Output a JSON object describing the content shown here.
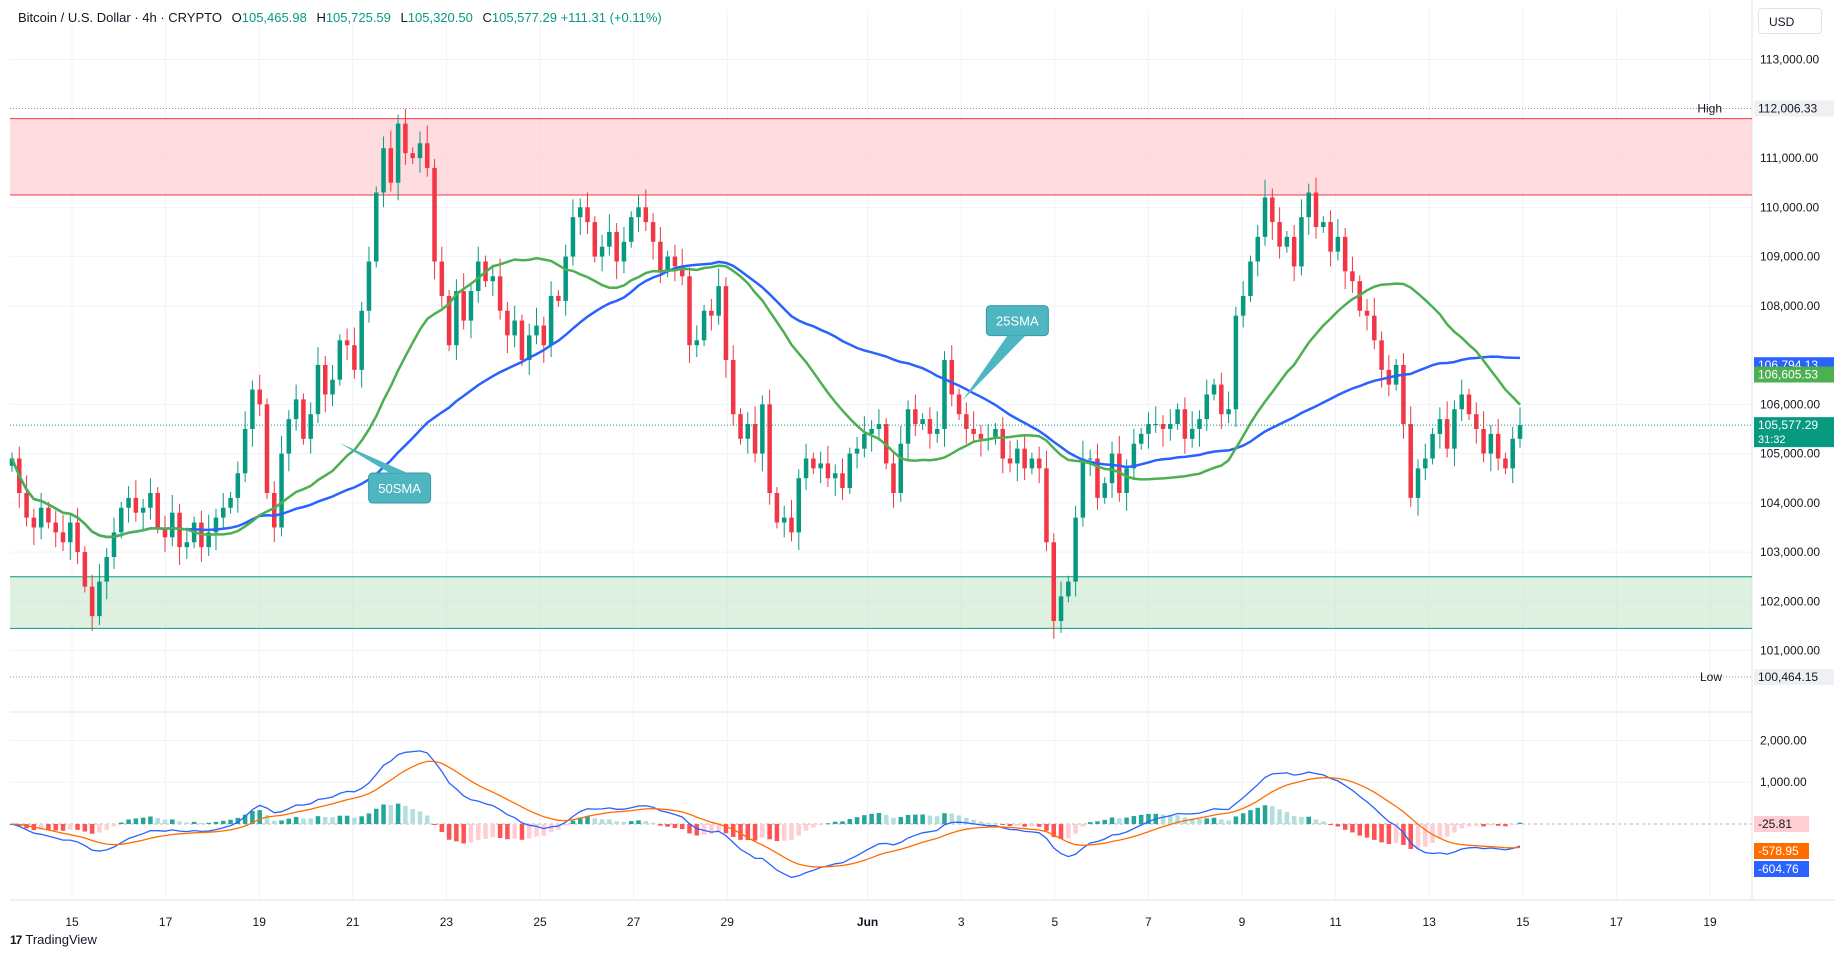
{
  "header": {
    "symbol": "Bitcoin / U.S. Dollar · 4h · CRYPTO",
    "open_label": "O",
    "open": "105,465.98",
    "high_label": "H",
    "high": "105,725.59",
    "low_label": "L",
    "low": "105,320.50",
    "close_label": "C",
    "close": "105,577.29",
    "change": "+111.31 (+0.11%)"
  },
  "currency": "USD",
  "brand": {
    "logo": "17",
    "name": "TradingView"
  },
  "colors": {
    "up": "#089981",
    "down": "#f23645",
    "sma25": "#4caf50",
    "sma50": "#2962ff",
    "resistance_zone": "#ffcdd2",
    "support_zone": "#c8e6c9",
    "macd_line": "#2962ff",
    "signal_line": "#ff6d00"
  },
  "chart_data": [
    {
      "type": "candlestick",
      "title": "",
      "timeframe": "4h",
      "price_axis": {
        "ylim": [
          100200,
          113600
        ],
        "ticks": [
          "113,000.00",
          "111,000.00",
          "110,000.00",
          "109,000.00",
          "108,000.00",
          "106,000.00",
          "105,000.00",
          "104,000.00",
          "103,000.00",
          "102,000.00",
          "101,000.00"
        ],
        "tick_values": [
          113000,
          111000,
          110000,
          109000,
          108000,
          106000,
          105000,
          104000,
          103000,
          102000,
          101000
        ]
      },
      "time_axis": {
        "labels": [
          "15",
          "17",
          "19",
          "21",
          "23",
          "25",
          "27",
          "29",
          "Jun",
          "3",
          "5",
          "7",
          "9",
          "11",
          "13",
          "15",
          "17",
          "19"
        ],
        "label_days": [
          15,
          17,
          19,
          21,
          23,
          25,
          27,
          29,
          32,
          34,
          36,
          38,
          40,
          42,
          44,
          46,
          48,
          50
        ]
      },
      "price_labels": {
        "high": {
          "label": "High",
          "value": "112,006.33"
        },
        "low": {
          "label": "Low",
          "value": "100,464.15"
        },
        "sma50": "106,794.13",
        "sma25": "106,605.53",
        "last": "105,577.29",
        "countdown": "31:32"
      },
      "zones": {
        "resistance": [
          110250,
          111800
        ],
        "support": [
          101450,
          102500
        ]
      },
      "annotations": [
        {
          "text": "25SMA",
          "day": 35.2,
          "price": 107700
        },
        {
          "text": "50SMA",
          "day": 22.0,
          "price": 104300
        }
      ],
      "closes": [
        104900,
        104200,
        103700,
        103500,
        103900,
        103600,
        103400,
        103200,
        103600,
        103000,
        102300,
        101700,
        102400,
        102900,
        103400,
        103900,
        104100,
        103800,
        103900,
        104200,
        103500,
        103300,
        103800,
        103100,
        103200,
        103600,
        103100,
        103400,
        103700,
        103900,
        104100,
        104600,
        105500,
        106300,
        106000,
        104200,
        103500,
        105000,
        105700,
        106100,
        105300,
        105800,
        106800,
        106200,
        106500,
        107300,
        107200,
        106700,
        107900,
        108900,
        110300,
        111200,
        110500,
        111700,
        111100,
        111000,
        111300,
        110800,
        108900,
        108200,
        107200,
        108300,
        107700,
        108300,
        108900,
        108500,
        108600,
        107900,
        107400,
        107700,
        106900,
        107400,
        107600,
        107200,
        108200,
        108100,
        109000,
        109800,
        110000,
        109700,
        109000,
        109200,
        109500,
        108900,
        109300,
        109800,
        110000,
        109700,
        109300,
        108700,
        109000,
        108800,
        108600,
        107200,
        107300,
        107900,
        107800,
        108400,
        106900,
        105800,
        105300,
        105600,
        105000,
        106000,
        104200,
        103600,
        103700,
        103400,
        104500,
        104900,
        104700,
        104800,
        104500,
        104600,
        104300,
        105000,
        105100,
        105400,
        105500,
        105600,
        104800,
        104200,
        105200,
        105900,
        105600,
        105700,
        105400,
        105500,
        106900,
        106200,
        105800,
        105500,
        105400,
        105300,
        105300,
        105500,
        104900,
        104800,
        105100,
        104700,
        104900,
        104700,
        103200,
        101600,
        102100,
        102400,
        103700,
        104900,
        104900,
        104100,
        104400,
        105000,
        104200,
        104700,
        105200,
        105400,
        105600,
        105600,
        105500,
        105600,
        105900,
        105300,
        105500,
        105700,
        106200,
        106400,
        105800,
        105900,
        107800,
        108200,
        108900,
        109400,
        110200,
        109700,
        109200,
        109400,
        108800,
        109800,
        110300,
        109600,
        109700,
        109100,
        109400,
        108700,
        108500,
        107900,
        107800,
        107300,
        106700,
        106400,
        106800,
        105600,
        104100,
        104700,
        104900,
        105400,
        105700,
        105100,
        105900,
        106200,
        105800,
        105500,
        105000,
        105400,
        104900,
        104700,
        105300,
        105577
      ]
    },
    {
      "type": "line",
      "title": "",
      "indicator": "MACD",
      "ylim": [
        -1100,
        2250
      ],
      "ticks": [
        "2,000.00",
        "1,000.00"
      ],
      "tick_values": [
        2000,
        1000
      ],
      "series": [],
      "current_values": {
        "histogram": "-25.81",
        "signal": "-578.95",
        "macd": "-604.76"
      }
    }
  ]
}
